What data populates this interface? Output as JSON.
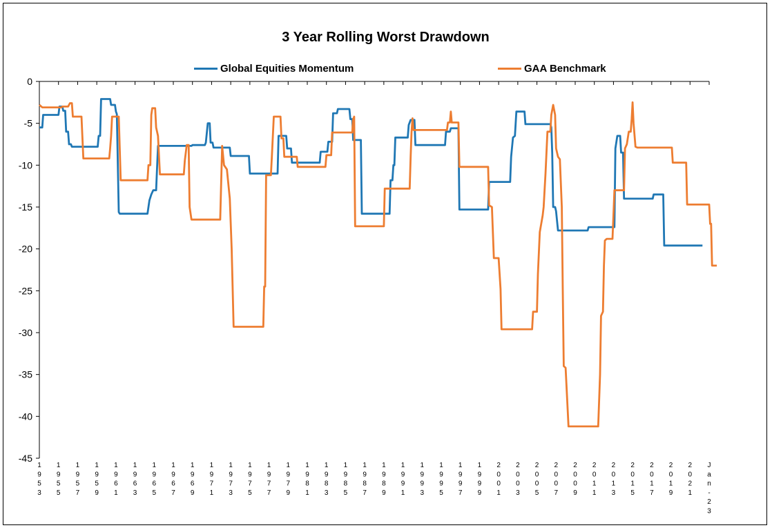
{
  "chart_data": {
    "type": "line",
    "title": "3 Year Rolling Worst Drawdown",
    "xlabel": "",
    "ylabel": "",
    "ylim": [
      -45,
      0
    ],
    "yticks": [
      "0",
      "-5",
      "-10",
      "-15",
      "-20",
      "-25",
      "-30",
      "-35",
      "-40",
      "-45"
    ],
    "xlim": [
      1953.0,
      2023.0
    ],
    "xticks": [
      {
        "x": 1953,
        "label": "1953"
      },
      {
        "x": 1955,
        "label": "1955"
      },
      {
        "x": 1957,
        "label": "1957"
      },
      {
        "x": 1959,
        "label": "1959"
      },
      {
        "x": 1961,
        "label": "1961"
      },
      {
        "x": 1963,
        "label": "1963"
      },
      {
        "x": 1965,
        "label": "1965"
      },
      {
        "x": 1967,
        "label": "1967"
      },
      {
        "x": 1969,
        "label": "1969"
      },
      {
        "x": 1971,
        "label": "1971"
      },
      {
        "x": 1973,
        "label": "1973"
      },
      {
        "x": 1975,
        "label": "1975"
      },
      {
        "x": 1977,
        "label": "1977"
      },
      {
        "x": 1979,
        "label": "1979"
      },
      {
        "x": 1981,
        "label": "1981"
      },
      {
        "x": 1983,
        "label": "1983"
      },
      {
        "x": 1985,
        "label": "1985"
      },
      {
        "x": 1987,
        "label": "1987"
      },
      {
        "x": 1989,
        "label": "1989"
      },
      {
        "x": 1991,
        "label": "1991"
      },
      {
        "x": 1993,
        "label": "1993"
      },
      {
        "x": 1995,
        "label": "1995"
      },
      {
        "x": 1997,
        "label": "1997"
      },
      {
        "x": 1999,
        "label": "1999"
      },
      {
        "x": 2001,
        "label": "2001"
      },
      {
        "x": 2003,
        "label": "2003"
      },
      {
        "x": 2005,
        "label": "2005"
      },
      {
        "x": 2007,
        "label": "2007"
      },
      {
        "x": 2009,
        "label": "2009"
      },
      {
        "x": 2011,
        "label": "2011"
      },
      {
        "x": 2013,
        "label": "2013"
      },
      {
        "x": 2015,
        "label": "2015"
      },
      {
        "x": 2017,
        "label": "2017"
      },
      {
        "x": 2019,
        "label": "2019"
      },
      {
        "x": 2021,
        "label": "2021"
      },
      {
        "x": 2023,
        "label": "Jan-23"
      }
    ],
    "grid": false,
    "legend": "top",
    "series": [
      {
        "name": "Global Equities Momentum",
        "color": "#1f77b4",
        "points": [
          [
            1953.0,
            -5.5
          ],
          [
            1953.3,
            -5.5
          ],
          [
            1953.4,
            -4.0
          ],
          [
            1955.0,
            -4.0
          ],
          [
            1955.1,
            -3.0
          ],
          [
            1955.4,
            -3.0
          ],
          [
            1955.5,
            -3.5
          ],
          [
            1955.7,
            -3.5
          ],
          [
            1955.8,
            -6.0
          ],
          [
            1956.0,
            -6.0
          ],
          [
            1956.1,
            -7.5
          ],
          [
            1956.3,
            -7.5
          ],
          [
            1956.4,
            -7.8
          ],
          [
            1959.1,
            -7.8
          ],
          [
            1959.2,
            -6.5
          ],
          [
            1959.35,
            -6.5
          ],
          [
            1959.45,
            -2.1
          ],
          [
            1960.4,
            -2.1
          ],
          [
            1960.5,
            -2.8
          ],
          [
            1960.9,
            -2.8
          ],
          [
            1961.0,
            -3.6
          ],
          [
            1961.1,
            -3.9
          ],
          [
            1961.3,
            -15.6
          ],
          [
            1961.4,
            -15.8
          ],
          [
            1964.3,
            -15.8
          ],
          [
            1964.4,
            -15.0
          ],
          [
            1964.5,
            -14.2
          ],
          [
            1964.7,
            -13.5
          ],
          [
            1964.9,
            -13.0
          ],
          [
            1965.2,
            -13.0
          ],
          [
            1965.4,
            -7.7
          ],
          [
            1968.9,
            -7.7
          ],
          [
            1969.0,
            -7.6
          ],
          [
            1970.3,
            -7.6
          ],
          [
            1970.4,
            -7.3
          ],
          [
            1970.6,
            -5.0
          ],
          [
            1970.8,
            -5.0
          ],
          [
            1970.9,
            -7.3
          ],
          [
            1971.1,
            -7.3
          ],
          [
            1971.2,
            -7.9
          ],
          [
            1972.9,
            -7.9
          ],
          [
            1973.0,
            -8.9
          ],
          [
            1974.9,
            -8.9
          ],
          [
            1975.0,
            -11.0
          ],
          [
            1977.9,
            -11.0
          ],
          [
            1978.0,
            -6.5
          ],
          [
            1978.8,
            -6.5
          ],
          [
            1978.9,
            -8.0
          ],
          [
            1979.3,
            -8.0
          ],
          [
            1979.4,
            -9.7
          ],
          [
            1982.3,
            -9.7
          ],
          [
            1982.4,
            -8.4
          ],
          [
            1983.1,
            -8.4
          ],
          [
            1983.2,
            -7.2
          ],
          [
            1983.6,
            -7.2
          ],
          [
            1983.7,
            -3.8
          ],
          [
            1984.1,
            -3.8
          ],
          [
            1984.2,
            -3.3
          ],
          [
            1985.4,
            -3.3
          ],
          [
            1985.5,
            -4.5
          ],
          [
            1985.7,
            -4.5
          ],
          [
            1985.8,
            -7.0
          ],
          [
            1986.6,
            -7.0
          ],
          [
            1986.7,
            -15.8
          ],
          [
            1989.6,
            -15.8
          ],
          [
            1989.7,
            -11.8
          ],
          [
            1989.9,
            -11.8
          ],
          [
            1990.0,
            -10.0
          ],
          [
            1990.1,
            -10.0
          ],
          [
            1990.2,
            -6.7
          ],
          [
            1991.5,
            -6.7
          ],
          [
            1991.6,
            -5.2
          ],
          [
            1991.8,
            -4.6
          ],
          [
            1992.2,
            -4.6
          ],
          [
            1992.3,
            -7.6
          ],
          [
            1995.4,
            -7.6
          ],
          [
            1995.5,
            -6.0
          ],
          [
            1995.9,
            -6.0
          ],
          [
            1996.0,
            -5.6
          ],
          [
            1996.8,
            -5.6
          ],
          [
            1996.9,
            -15.3
          ],
          [
            1999.9,
            -15.3
          ],
          [
            2000.0,
            -12.0
          ],
          [
            2002.2,
            -12.0
          ],
          [
            2002.3,
            -9.0
          ],
          [
            2002.5,
            -6.7
          ],
          [
            2002.7,
            -6.5
          ],
          [
            2002.85,
            -3.6
          ],
          [
            2003.7,
            -3.6
          ],
          [
            2003.8,
            -5.1
          ],
          [
            2006.4,
            -5.1
          ],
          [
            2006.5,
            -5.5
          ],
          [
            2006.6,
            -8.5
          ],
          [
            2006.7,
            -15.0
          ],
          [
            2006.9,
            -15.0
          ],
          [
            2007.0,
            -15.5
          ],
          [
            2007.2,
            -17.8
          ],
          [
            2010.3,
            -17.8
          ],
          [
            2010.4,
            -17.4
          ],
          [
            2013.1,
            -17.4
          ],
          [
            2013.2,
            -8.0
          ],
          [
            2013.4,
            -6.5
          ],
          [
            2013.7,
            -6.5
          ],
          [
            2013.8,
            -8.5
          ],
          [
            2014.0,
            -8.5
          ],
          [
            2014.1,
            -14.0
          ],
          [
            2017.1,
            -14.0
          ],
          [
            2017.2,
            -13.5
          ],
          [
            2018.2,
            -13.5
          ],
          [
            2018.3,
            -19.6
          ],
          [
            2022.3,
            -19.6
          ]
        ]
      },
      {
        "name": "GAA Benchmark",
        "color": "#ed7d31",
        "points": [
          [
            1953.0,
            -2.8
          ],
          [
            1953.3,
            -3.1
          ],
          [
            1955.3,
            -3.1
          ],
          [
            1955.4,
            -3.0
          ],
          [
            1956.0,
            -3.0
          ],
          [
            1956.2,
            -2.6
          ],
          [
            1956.4,
            -2.6
          ],
          [
            1956.5,
            -4.2
          ],
          [
            1957.4,
            -4.2
          ],
          [
            1957.6,
            -9.2
          ],
          [
            1960.3,
            -9.2
          ],
          [
            1960.4,
            -8.0
          ],
          [
            1960.5,
            -6.5
          ],
          [
            1960.6,
            -4.2
          ],
          [
            1961.3,
            -4.2
          ],
          [
            1961.5,
            -11.8
          ],
          [
            1964.3,
            -11.8
          ],
          [
            1964.4,
            -10.0
          ],
          [
            1964.6,
            -10.0
          ],
          [
            1964.7,
            -4.0
          ],
          [
            1964.8,
            -3.2
          ],
          [
            1965.1,
            -3.2
          ],
          [
            1965.2,
            -5.5
          ],
          [
            1965.4,
            -6.5
          ],
          [
            1965.6,
            -11.1
          ],
          [
            1968.1,
            -11.1
          ],
          [
            1968.2,
            -9.5
          ],
          [
            1968.4,
            -7.6
          ],
          [
            1968.6,
            -7.6
          ],
          [
            1968.7,
            -15.0
          ],
          [
            1968.9,
            -16.5
          ],
          [
            1971.9,
            -16.5
          ],
          [
            1972.1,
            -7.7
          ],
          [
            1972.3,
            -10.0
          ],
          [
            1972.6,
            -10.5
          ],
          [
            1972.9,
            -14.0
          ],
          [
            1973.1,
            -20.0
          ],
          [
            1973.3,
            -29.3
          ],
          [
            1976.4,
            -29.3
          ],
          [
            1976.5,
            -24.5
          ],
          [
            1976.6,
            -24.5
          ],
          [
            1976.7,
            -11.2
          ],
          [
            1977.2,
            -11.2
          ],
          [
            1977.3,
            -9.0
          ],
          [
            1977.5,
            -4.2
          ],
          [
            1978.2,
            -4.2
          ],
          [
            1978.3,
            -6.8
          ],
          [
            1978.5,
            -6.8
          ],
          [
            1978.6,
            -9.0
          ],
          [
            1979.9,
            -9.0
          ],
          [
            1980.0,
            -10.2
          ],
          [
            1982.9,
            -10.2
          ],
          [
            1983.0,
            -8.8
          ],
          [
            1983.5,
            -8.8
          ],
          [
            1983.6,
            -6.1
          ],
          [
            1985.7,
            -6.1
          ],
          [
            1985.8,
            -4.5
          ],
          [
            1985.9,
            -4.2
          ],
          [
            1986.0,
            -17.3
          ],
          [
            1989.0,
            -17.3
          ],
          [
            1989.1,
            -12.8
          ],
          [
            1991.7,
            -12.8
          ],
          [
            1991.8,
            -9.0
          ],
          [
            1991.9,
            -6.0
          ],
          [
            1992.0,
            -4.4
          ],
          [
            1992.1,
            -5.8
          ],
          [
            1995.6,
            -5.8
          ],
          [
            1995.7,
            -4.9
          ],
          [
            1995.9,
            -4.9
          ],
          [
            1996.0,
            -3.6
          ],
          [
            1996.1,
            -4.9
          ],
          [
            1996.8,
            -4.9
          ],
          [
            1996.9,
            -10.2
          ],
          [
            1999.9,
            -10.2
          ],
          [
            2000.0,
            -14.8
          ],
          [
            2000.3,
            -15.0
          ],
          [
            2000.5,
            -21.1
          ],
          [
            2001.0,
            -21.1
          ],
          [
            2001.2,
            -24.8
          ],
          [
            2001.3,
            -29.6
          ],
          [
            2004.5,
            -29.6
          ],
          [
            2004.6,
            -27.5
          ],
          [
            2005.0,
            -27.5
          ],
          [
            2005.1,
            -23.0
          ],
          [
            2005.3,
            -18.0
          ],
          [
            2005.6,
            -16.0
          ],
          [
            2005.7,
            -15.0
          ],
          [
            2005.9,
            -11.0
          ],
          [
            2006.1,
            -6.0
          ],
          [
            2006.4,
            -6.0
          ],
          [
            2006.5,
            -4.0
          ],
          [
            2006.7,
            -2.8
          ],
          [
            2006.9,
            -4.0
          ],
          [
            2007.0,
            -8.0
          ],
          [
            2007.2,
            -9.0
          ],
          [
            2007.4,
            -9.3
          ],
          [
            2007.6,
            -15.0
          ],
          [
            2007.7,
            -25.0
          ],
          [
            2007.8,
            -34.0
          ],
          [
            2008.0,
            -34.2
          ],
          [
            2008.3,
            -41.2
          ],
          [
            2011.4,
            -41.2
          ],
          [
            2011.6,
            -35.0
          ],
          [
            2011.7,
            -28.0
          ],
          [
            2011.9,
            -27.5
          ],
          [
            2012.0,
            -22.0
          ],
          [
            2012.1,
            -19.0
          ],
          [
            2012.3,
            -18.8
          ],
          [
            2012.9,
            -18.8
          ],
          [
            2013.0,
            -16.0
          ],
          [
            2013.1,
            -13.0
          ],
          [
            2014.1,
            -13.0
          ],
          [
            2014.2,
            -8.0
          ],
          [
            2014.4,
            -7.5
          ],
          [
            2014.6,
            -6.0
          ],
          [
            2014.8,
            -6.0
          ],
          [
            2014.9,
            -4.5
          ],
          [
            2015.0,
            -2.5
          ],
          [
            2015.1,
            -5.0
          ],
          [
            2015.3,
            -7.8
          ],
          [
            2015.5,
            -7.9
          ],
          [
            2019.1,
            -7.9
          ],
          [
            2019.2,
            -9.7
          ],
          [
            2020.6,
            -9.7
          ],
          [
            2020.7,
            -14.7
          ],
          [
            2023.0,
            -14.7
          ],
          [
            2023.1,
            -17.0
          ],
          [
            2023.2,
            -17.0
          ],
          [
            2023.3,
            -22.0
          ],
          [
            2023.8,
            -22.0
          ]
        ]
      }
    ]
  }
}
